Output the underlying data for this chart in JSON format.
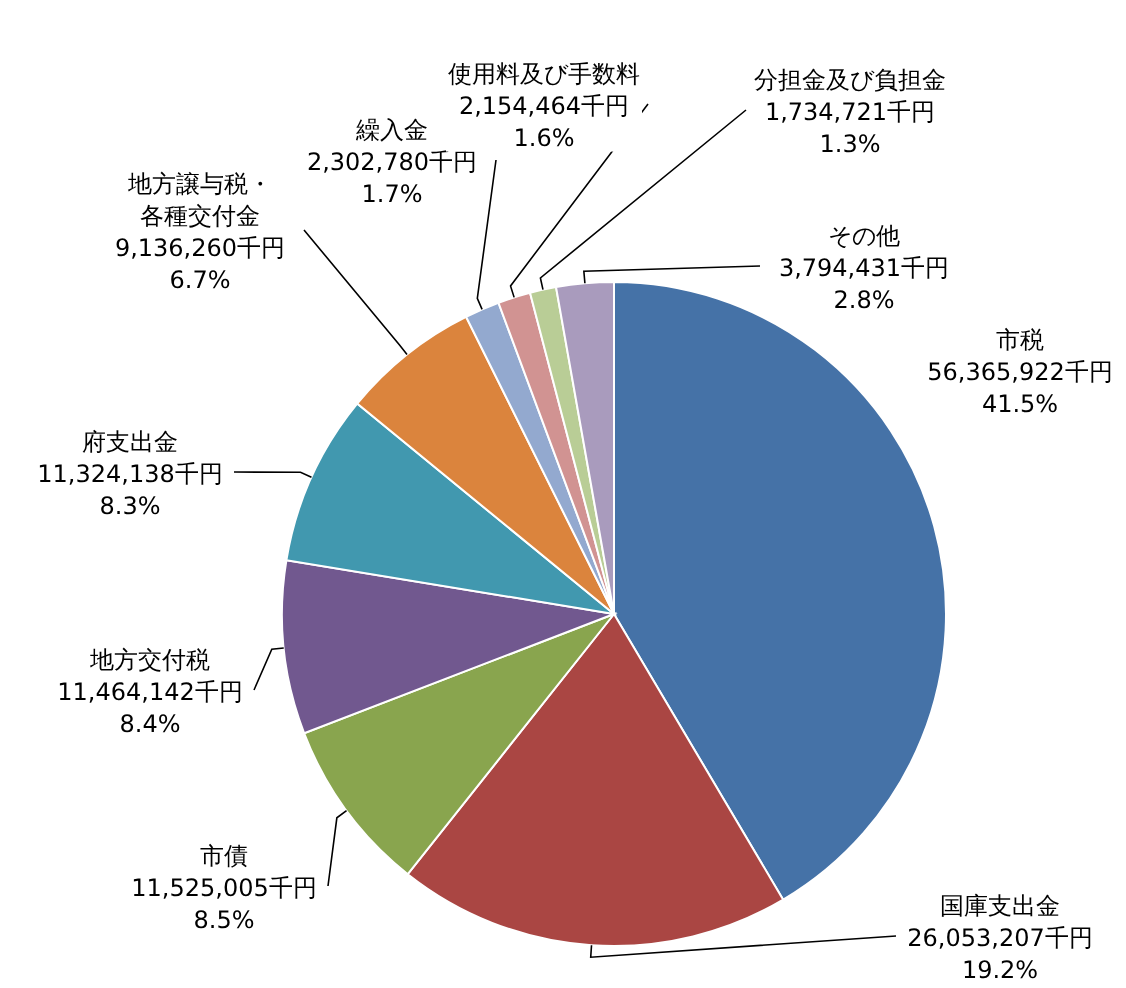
{
  "chart_data": {
    "type": "pie",
    "categories": [
      "市税",
      "国庫支出金",
      "市債",
      "地方交付税",
      "府支出金",
      "地方譲与税・各種交付金",
      "繰入金",
      "使用料及び手数料",
      "分担金及び負担金",
      "その他"
    ],
    "values": [
      56365922,
      26053207,
      11525005,
      11464142,
      11324138,
      9136260,
      2302780,
      2154464,
      1734721,
      3794431
    ],
    "value_labels": [
      "56,365,922千円\n41.5%",
      "26,053,207千円\n19.2%",
      "11,525,005千円\n8.5%",
      "11,464,142千円\n8.4%",
      "11,324,138千円\n8.3%",
      "9,136,260千円\n6.7%",
      "2,302,780千円\n1.7%",
      "2,154,464千円\n1.6%",
      "1,734,721千円\n1.3%",
      "3,794,431千円\n2.8%"
    ],
    "colors": [
      "#4572a7",
      "#aa4643",
      "#89a54e",
      "#71588f",
      "#4198af",
      "#db843d",
      "#93a9cf",
      "#d19392",
      "#b9cd96",
      "#a99bbd"
    ]
  }
}
